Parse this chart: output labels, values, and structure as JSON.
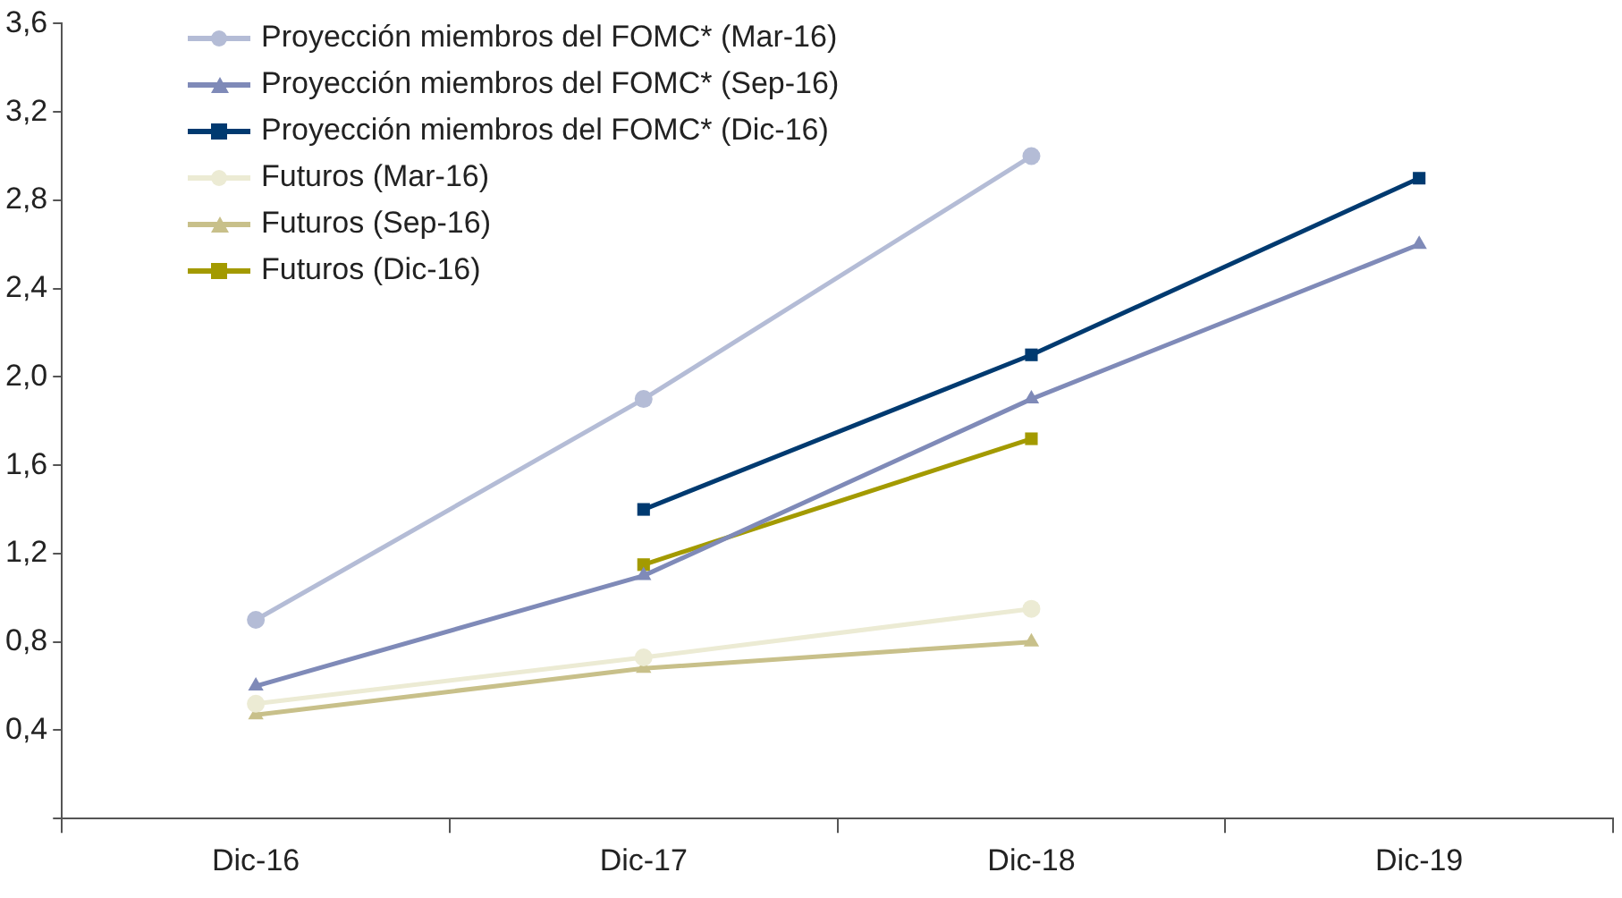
{
  "chart_data": {
    "type": "line",
    "categories": [
      "Dic-16",
      "Dic-17",
      "Dic-18",
      "Dic-19"
    ],
    "ylim": [
      0,
      3.6
    ],
    "yticks": [
      {
        "value": 0,
        "label": null
      },
      {
        "value": 0.4,
        "label": "0,4"
      },
      {
        "value": 0.8,
        "label": "0,8"
      },
      {
        "value": 1.2,
        "label": "1,2"
      },
      {
        "value": 1.6,
        "label": "1,6"
      },
      {
        "value": 2.0,
        "label": "2,0"
      },
      {
        "value": 2.4,
        "label": "2,4"
      },
      {
        "value": 2.8,
        "label": "2,8"
      },
      {
        "value": 3.2,
        "label": "3,2"
      },
      {
        "value": 3.6,
        "label": "3,6"
      }
    ],
    "grid": false,
    "legend": "top left",
    "line_style": "solid",
    "series": [
      {
        "name": "Proyección miembros del FOMC* (Mar-16)",
        "color": "#b4bcd6",
        "marker": "circle",
        "values": [
          0.9,
          1.9,
          3.0,
          null
        ]
      },
      {
        "name": "Proyección miembros del FOMC* (Sep-16)",
        "color": "#7f8ab8",
        "marker": "triangle",
        "values": [
          0.6,
          1.1,
          1.9,
          2.6
        ]
      },
      {
        "name": "Proyección miembros del FOMC* (Dic-16)",
        "color": "#003a70",
        "marker": "square",
        "values": [
          null,
          1.4,
          2.1,
          2.9
        ]
      },
      {
        "name": "Futuros (Mar-16)",
        "color": "#ecebd4",
        "marker": "circle",
        "values": [
          0.52,
          0.73,
          0.95,
          null
        ]
      },
      {
        "name": "Futuros (Sep-16)",
        "color": "#c8c08a",
        "marker": "triangle",
        "values": [
          0.47,
          0.68,
          0.8,
          null
        ]
      },
      {
        "name": "Futuros (Dic-16)",
        "color": "#a39a00",
        "marker": "square",
        "values": [
          null,
          1.15,
          1.72,
          null
        ]
      }
    ]
  }
}
